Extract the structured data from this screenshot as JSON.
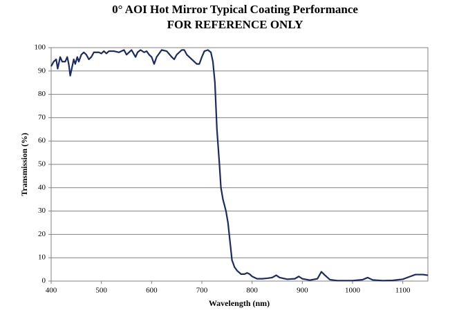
{
  "chart_data": {
    "type": "line",
    "title": "0° AOI Hot Mirror Typical Coating Performance",
    "subtitle": "FOR REFERENCE ONLY",
    "x_label": "Wavelength (nm)",
    "y_label": "Transmission (%)",
    "x": [
      400,
      405,
      410,
      413,
      418,
      422,
      428,
      432,
      435,
      438,
      442,
      445,
      448,
      452,
      455,
      460,
      465,
      470,
      475,
      480,
      485,
      495,
      500,
      505,
      510,
      515,
      525,
      535,
      545,
      550,
      555,
      560,
      568,
      572,
      578,
      585,
      590,
      595,
      600,
      605,
      610,
      620,
      630,
      640,
      645,
      650,
      660,
      665,
      670,
      680,
      690,
      695,
      700,
      705,
      712,
      718,
      722,
      726,
      730,
      735,
      738,
      742,
      748,
      752,
      756,
      760,
      765,
      770,
      778,
      785,
      790,
      795,
      800,
      810,
      820,
      830,
      840,
      848,
      855,
      870,
      885,
      893,
      900,
      915,
      930,
      938,
      945,
      955,
      970,
      1000,
      1020,
      1030,
      1040,
      1060,
      1080,
      1100,
      1115,
      1125,
      1140,
      1150
    ],
    "series": [
      {
        "name": "Transmission",
        "color": "#1b2a63",
        "values": [
          92,
          94,
          95,
          91,
          96,
          94,
          94,
          96,
          93,
          88,
          92,
          95,
          93,
          96,
          94,
          97,
          98,
          97,
          95,
          96,
          98,
          98,
          97.5,
          98.5,
          97.5,
          98.5,
          98.5,
          98,
          99,
          97,
          98,
          99,
          96,
          98,
          99,
          98,
          98.5,
          97,
          96,
          93,
          96,
          99,
          98.5,
          96,
          95,
          97,
          99,
          99,
          97,
          95,
          93,
          93,
          96,
          98.5,
          99,
          98,
          94,
          85,
          65,
          50,
          40,
          35,
          30,
          25,
          17,
          9,
          6,
          4.5,
          3,
          3,
          3.5,
          3,
          2,
          1,
          1,
          1.2,
          1.5,
          2.5,
          1.5,
          0.8,
          1,
          2,
          1,
          0.4,
          1,
          4,
          2.5,
          0.6,
          0.2,
          0.2,
          0.6,
          1.5,
          0.5,
          0.2,
          0.3,
          0.8,
          2,
          2.8,
          2.8,
          2.5
        ]
      }
    ],
    "xlim": [
      400,
      1150
    ],
    "xticks": [
      400,
      500,
      600,
      700,
      800,
      900,
      1000,
      1100
    ],
    "ylim": [
      0,
      100
    ],
    "yticks": [
      0,
      10,
      20,
      30,
      40,
      50,
      60,
      70,
      80,
      90,
      100
    ],
    "grid": true
  }
}
